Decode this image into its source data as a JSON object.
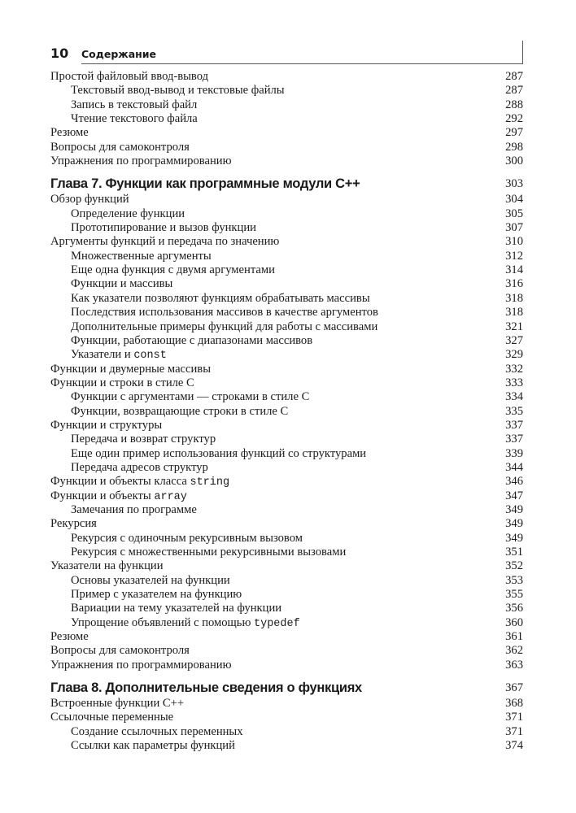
{
  "header": {
    "page_number": "10",
    "title": "Содержание"
  },
  "sections": [
    {
      "chapter": null,
      "entries": [
        {
          "level": 0,
          "title": "Простой файловый ввод-вывод",
          "page": "287"
        },
        {
          "level": 1,
          "title": "Текстовый ввод-вывод и текстовые файлы",
          "page": "287"
        },
        {
          "level": 1,
          "title": "Запись в текстовый файл",
          "page": "288"
        },
        {
          "level": 1,
          "title": "Чтение текстового файла",
          "page": "292"
        },
        {
          "level": 0,
          "title": "Резюме",
          "page": "297"
        },
        {
          "level": 0,
          "title": "Вопросы для самоконтроля",
          "page": "298"
        },
        {
          "level": 0,
          "title": "Упражнения по программированию",
          "page": "300"
        }
      ]
    },
    {
      "chapter": {
        "title": "Глава 7. Функции как программные модули C++",
        "page": "303"
      },
      "entries": [
        {
          "level": 0,
          "title": "Обзор функций",
          "page": "304"
        },
        {
          "level": 1,
          "title": "Определение функции",
          "page": "305"
        },
        {
          "level": 1,
          "title": "Прототипирование и вызов функции",
          "page": "307"
        },
        {
          "level": 0,
          "title": "Аргументы функций и передача по значению",
          "page": "310"
        },
        {
          "level": 1,
          "title": "Множественные аргументы",
          "page": "312"
        },
        {
          "level": 1,
          "title": "Еще одна функция с двумя аргументами",
          "page": "314"
        },
        {
          "level": 1,
          "title": "Функции и массивы",
          "page": "316"
        },
        {
          "level": 1,
          "title": "Как указатели позволяют функциям обрабатывать массивы",
          "page": "318"
        },
        {
          "level": 1,
          "title": "Последствия использования массивов в качестве аргументов",
          "page": "318"
        },
        {
          "level": 1,
          "title": "Дополнительные примеры функций для работы с массивами",
          "page": "321"
        },
        {
          "level": 1,
          "title": "Функции, работающие с диапазонами массивов",
          "page": "327"
        },
        {
          "level": 1,
          "title": "Указатели и ",
          "code": "const",
          "page": "329"
        },
        {
          "level": 0,
          "title": "Функции и двумерные массивы",
          "page": "332"
        },
        {
          "level": 0,
          "title": "Функции и строки в стиле C",
          "page": "333"
        },
        {
          "level": 1,
          "title": "Функции с аргументами — строками в стиле C",
          "page": "334"
        },
        {
          "level": 1,
          "title": "Функции, возвращающие строки в стиле C",
          "page": "335"
        },
        {
          "level": 0,
          "title": "Функции и структуры",
          "page": "337"
        },
        {
          "level": 1,
          "title": "Передача и возврат структур",
          "page": "337"
        },
        {
          "level": 1,
          "title": "Еще один пример использования функций со структурами",
          "page": "339"
        },
        {
          "level": 1,
          "title": "Передача адресов структур",
          "page": "344"
        },
        {
          "level": 0,
          "title": "Функции и объекты класса ",
          "code": "string",
          "page": "346"
        },
        {
          "level": 0,
          "title": "Функции и объекты ",
          "code": "array",
          "page": "347"
        },
        {
          "level": 1,
          "title": "Замечания по программе",
          "page": "349"
        },
        {
          "level": 0,
          "title": "Рекурсия",
          "page": "349"
        },
        {
          "level": 1,
          "title": "Рекурсия с одиночным рекурсивным вызовом",
          "page": "349"
        },
        {
          "level": 1,
          "title": "Рекурсия с множественными рекурсивными вызовами",
          "page": "351"
        },
        {
          "level": 0,
          "title": "Указатели на функции",
          "page": "352"
        },
        {
          "level": 1,
          "title": "Основы указателей на функции",
          "page": "353"
        },
        {
          "level": 1,
          "title": "Пример с указателем на функцию",
          "page": "355"
        },
        {
          "level": 1,
          "title": "Вариации на тему указателей на функции",
          "page": "356"
        },
        {
          "level": 1,
          "title": "Упрощение объявлений с помощью ",
          "code": "typedef",
          "page": "360"
        },
        {
          "level": 0,
          "title": "Резюме",
          "page": "361"
        },
        {
          "level": 0,
          "title": "Вопросы для самоконтроля",
          "page": "362"
        },
        {
          "level": 0,
          "title": "Упражнения по программированию",
          "page": "363"
        }
      ]
    },
    {
      "chapter": {
        "title": "Глава 8. Дополнительные сведения о функциях",
        "page": "367"
      },
      "entries": [
        {
          "level": 0,
          "title": "Встроенные функции C++",
          "page": "368"
        },
        {
          "level": 0,
          "title": "Ссылочные переменные",
          "page": "371"
        },
        {
          "level": 1,
          "title": "Создание ссылочных переменных",
          "page": "371"
        },
        {
          "level": 1,
          "title": "Ссылки как параметры функций",
          "page": "374"
        }
      ]
    }
  ]
}
